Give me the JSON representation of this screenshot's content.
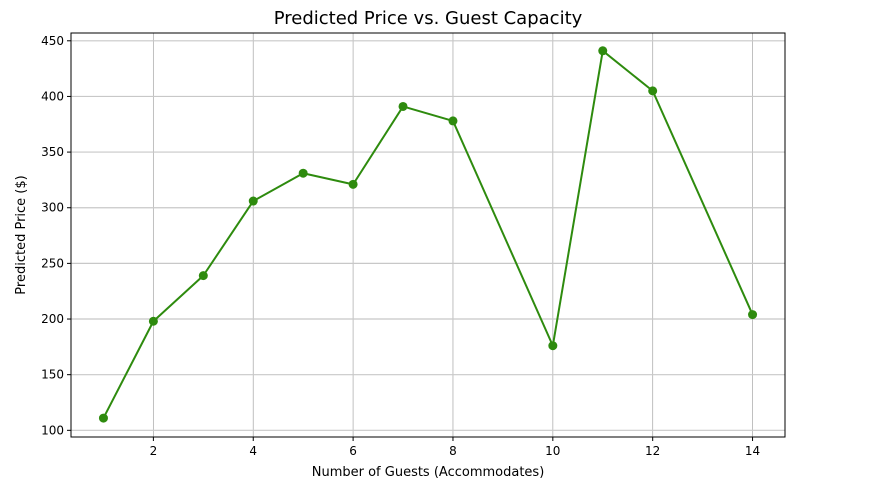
{
  "chart_data": {
    "type": "line",
    "title": "Predicted Price vs. Guest Capacity",
    "xlabel": "Number of Guests (Accommodates)",
    "ylabel": "Predicted Price ($)",
    "x": [
      1,
      2,
      3,
      4,
      5,
      6,
      7,
      8,
      10,
      11,
      12,
      14
    ],
    "series": [
      {
        "values": [
          111,
          198,
          239,
          306,
          331,
          321,
          391,
          378,
          176,
          441,
          405,
          204
        ],
        "color": "#2e8b0e",
        "marker": "circle"
      }
    ],
    "xticks": [
      "2",
      "4",
      "6",
      "8",
      "10",
      "12",
      "14"
    ],
    "yticks": [
      "100",
      "150",
      "200",
      "250",
      "300",
      "350",
      "400",
      "450"
    ],
    "xlim": [
      0.35,
      14.65
    ],
    "ylim": [
      94,
      457
    ],
    "grid": true
  }
}
